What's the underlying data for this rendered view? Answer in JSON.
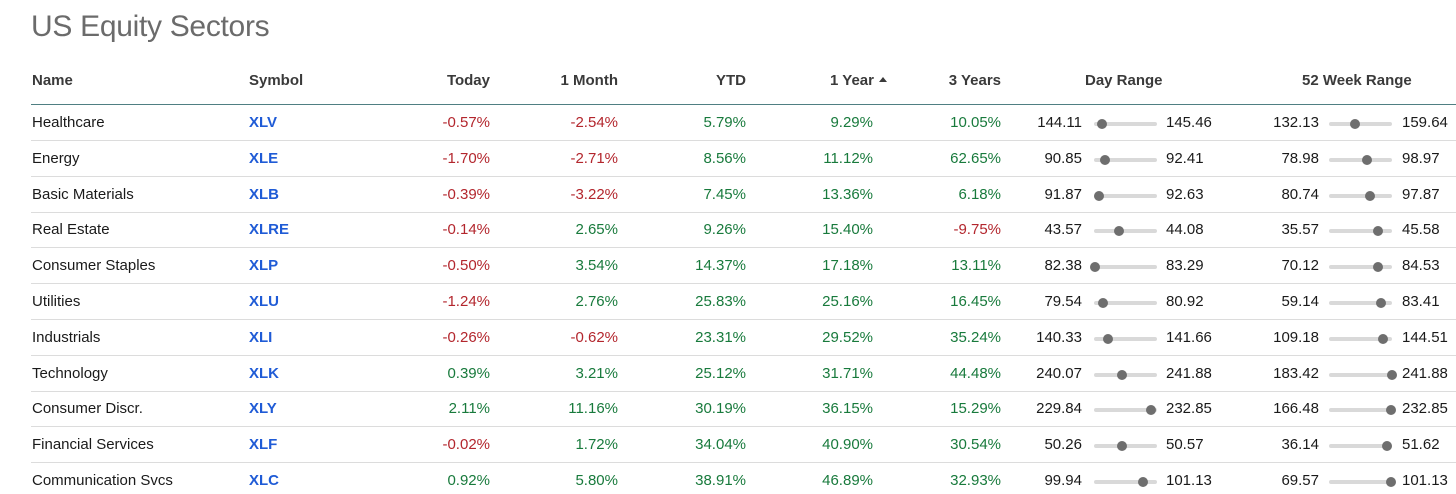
{
  "title": "US Equity Sectors",
  "columns": {
    "name": "Name",
    "symbol": "Symbol",
    "today": "Today",
    "month": "1 Month",
    "ytd": "YTD",
    "year": "1 Year",
    "three_years": "3 Years",
    "day_range": "Day Range",
    "week52_range": "52 Week Range"
  },
  "sort": {
    "column": "1 Year",
    "direction": "ascending",
    "icon": "sort-ascending-icon"
  },
  "colors": {
    "negative": "#b3262d",
    "positive": "#187a3c",
    "symbol": "#1f5bd6",
    "header_rule": "#4f7f82"
  },
  "rows": [
    {
      "name": "Healthcare",
      "symbol": "XLV",
      "today": "-0.57%",
      "month": "-2.54%",
      "ytd": "5.79%",
      "year": "9.29%",
      "three_years": "10.05%",
      "day_low": "144.11",
      "day_high": "145.46",
      "day_pos": 0.12,
      "wk_low": "132.13",
      "wk_high": "159.64",
      "wk_pos": 0.42
    },
    {
      "name": "Energy",
      "symbol": "XLE",
      "today": "-1.70%",
      "month": "-2.71%",
      "ytd": "8.56%",
      "year": "11.12%",
      "three_years": "62.65%",
      "day_low": "90.85",
      "day_high": "92.41",
      "day_pos": 0.18,
      "wk_low": "78.98",
      "wk_high": "98.97",
      "wk_pos": 0.6
    },
    {
      "name": "Basic Materials",
      "symbol": "XLB",
      "today": "-0.39%",
      "month": "-3.22%",
      "ytd": "7.45%",
      "year": "13.36%",
      "three_years": "6.18%",
      "day_low": "91.87",
      "day_high": "92.63",
      "day_pos": 0.08,
      "wk_low": "80.74",
      "wk_high": "97.87",
      "wk_pos": 0.65
    },
    {
      "name": "Real Estate",
      "symbol": "XLRE",
      "today": "-0.14%",
      "month": "2.65%",
      "ytd": "9.26%",
      "year": "15.40%",
      "three_years": "-9.75%",
      "day_low": "43.57",
      "day_high": "44.08",
      "day_pos": 0.4,
      "wk_low": "35.57",
      "wk_high": "45.58",
      "wk_pos": 0.78
    },
    {
      "name": "Consumer Staples",
      "symbol": "XLP",
      "today": "-0.50%",
      "month": "3.54%",
      "ytd": "14.37%",
      "year": "17.18%",
      "three_years": "13.11%",
      "day_low": "82.38",
      "day_high": "83.29",
      "day_pos": 0.02,
      "wk_low": "70.12",
      "wk_high": "84.53",
      "wk_pos": 0.78
    },
    {
      "name": "Utilities",
      "symbol": "XLU",
      "today": "-1.24%",
      "month": "2.76%",
      "ytd": "25.83%",
      "year": "25.16%",
      "three_years": "16.45%",
      "day_low": "79.54",
      "day_high": "80.92",
      "day_pos": 0.14,
      "wk_low": "59.14",
      "wk_high": "83.41",
      "wk_pos": 0.82
    },
    {
      "name": "Industrials",
      "symbol": "XLI",
      "today": "-0.26%",
      "month": "-0.62%",
      "ytd": "23.31%",
      "year": "29.52%",
      "three_years": "35.24%",
      "day_low": "140.33",
      "day_high": "141.66",
      "day_pos": 0.22,
      "wk_low": "109.18",
      "wk_high": "144.51",
      "wk_pos": 0.85
    },
    {
      "name": "Technology",
      "symbol": "XLK",
      "today": "0.39%",
      "month": "3.21%",
      "ytd": "25.12%",
      "year": "31.71%",
      "three_years": "44.48%",
      "day_low": "240.07",
      "day_high": "241.88",
      "day_pos": 0.45,
      "wk_low": "183.42",
      "wk_high": "241.88",
      "wk_pos": 1.0
    },
    {
      "name": "Consumer Discr.",
      "symbol": "XLY",
      "today": "2.11%",
      "month": "11.16%",
      "ytd": "30.19%",
      "year": "36.15%",
      "three_years": "15.29%",
      "day_low": "229.84",
      "day_high": "232.85",
      "day_pos": 0.9,
      "wk_low": "166.48",
      "wk_high": "232.85",
      "wk_pos": 0.98
    },
    {
      "name": "Financial Services",
      "symbol": "XLF",
      "today": "-0.02%",
      "month": "1.72%",
      "ytd": "34.04%",
      "year": "40.90%",
      "three_years": "30.54%",
      "day_low": "50.26",
      "day_high": "50.57",
      "day_pos": 0.45,
      "wk_low": "36.14",
      "wk_high": "51.62",
      "wk_pos": 0.92
    },
    {
      "name": "Communication Svcs",
      "symbol": "XLC",
      "today": "0.92%",
      "month": "5.80%",
      "ytd": "38.91%",
      "year": "46.89%",
      "three_years": "32.93%",
      "day_low": "99.94",
      "day_high": "101.13",
      "day_pos": 0.78,
      "wk_low": "69.57",
      "wk_high": "101.13",
      "wk_pos": 0.98
    }
  ]
}
